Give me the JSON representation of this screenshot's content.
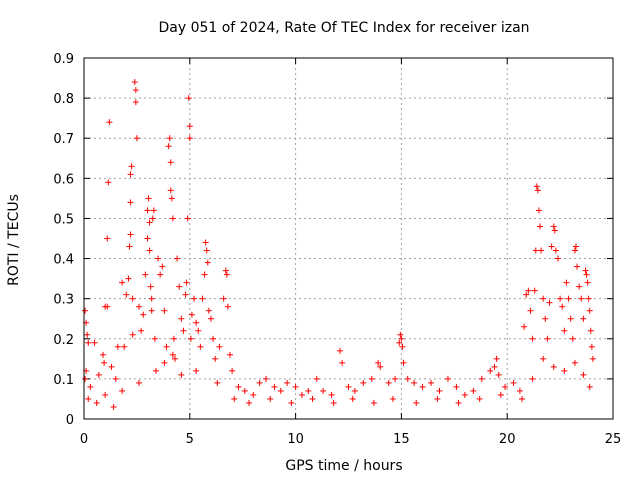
{
  "chart_data": {
    "type": "scatter",
    "title": "Day 051 of 2024, Rate Of TEC Index for receiver izan",
    "xlabel": "GPS time / hours",
    "ylabel": "ROTI / TECUs",
    "xlim": [
      0,
      25
    ],
    "ylim": [
      0,
      0.9
    ],
    "xticks": [
      0,
      5,
      10,
      15,
      20,
      25
    ],
    "yticks": [
      0,
      0.1,
      0.2,
      0.3,
      0.4,
      0.5,
      0.6,
      0.7,
      0.8,
      0.9
    ],
    "ytick_labels": [
      "0",
      "0.1",
      "0.2",
      "0.3",
      "0.4",
      "0.5",
      "0.6",
      "0.7",
      "0.8",
      "0.9"
    ],
    "grid": true,
    "marker": "+",
    "series": [
      {
        "name": "ROTI",
        "color": "#ff0000",
        "points": [
          [
            0.05,
            0.27
          ],
          [
            0.1,
            0.24
          ],
          [
            0.15,
            0.21
          ],
          [
            0.2,
            0.19
          ],
          [
            0.1,
            0.12
          ],
          [
            0.05,
            0.1
          ],
          [
            0.3,
            0.08
          ],
          [
            0.5,
            0.19
          ],
          [
            0.7,
            0.11
          ],
          [
            0.9,
            0.16
          ],
          [
            0.95,
            0.14
          ],
          [
            1.0,
            0.28
          ],
          [
            1.1,
            0.28
          ],
          [
            1.2,
            0.74
          ],
          [
            1.15,
            0.59
          ],
          [
            1.1,
            0.45
          ],
          [
            1.3,
            0.13
          ],
          [
            1.5,
            0.1
          ],
          [
            1.6,
            0.18
          ],
          [
            1.8,
            0.34
          ],
          [
            1.9,
            0.18
          ],
          [
            2.0,
            0.31
          ],
          [
            2.1,
            0.35
          ],
          [
            2.2,
            0.61
          ],
          [
            2.25,
            0.63
          ],
          [
            2.2,
            0.54
          ],
          [
            2.15,
            0.43
          ],
          [
            2.2,
            0.46
          ],
          [
            2.3,
            0.3
          ],
          [
            2.3,
            0.21
          ],
          [
            2.4,
            0.84
          ],
          [
            2.45,
            0.82
          ],
          [
            2.45,
            0.79
          ],
          [
            2.5,
            0.7
          ],
          [
            2.6,
            0.28
          ],
          [
            2.7,
            0.22
          ],
          [
            2.8,
            0.26
          ],
          [
            2.9,
            0.36
          ],
          [
            3.0,
            0.45
          ],
          [
            3.0,
            0.52
          ],
          [
            3.05,
            0.55
          ],
          [
            3.1,
            0.49
          ],
          [
            3.1,
            0.42
          ],
          [
            3.15,
            0.33
          ],
          [
            3.2,
            0.27
          ],
          [
            3.2,
            0.3
          ],
          [
            3.25,
            0.5
          ],
          [
            3.3,
            0.52
          ],
          [
            3.35,
            0.2
          ],
          [
            3.5,
            0.4
          ],
          [
            3.6,
            0.36
          ],
          [
            3.7,
            0.38
          ],
          [
            3.8,
            0.27
          ],
          [
            3.9,
            0.18
          ],
          [
            4.0,
            0.68
          ],
          [
            4.05,
            0.7
          ],
          [
            4.1,
            0.64
          ],
          [
            4.1,
            0.57
          ],
          [
            4.15,
            0.55
          ],
          [
            4.2,
            0.5
          ],
          [
            4.25,
            0.2
          ],
          [
            4.3,
            0.15
          ],
          [
            4.4,
            0.4
          ],
          [
            4.5,
            0.33
          ],
          [
            4.6,
            0.25
          ],
          [
            4.7,
            0.22
          ],
          [
            4.8,
            0.31
          ],
          [
            4.85,
            0.34
          ],
          [
            4.9,
            0.5
          ],
          [
            4.95,
            0.8
          ],
          [
            5.0,
            0.73
          ],
          [
            5.0,
            0.7
          ],
          [
            5.05,
            0.2
          ],
          [
            5.1,
            0.26
          ],
          [
            5.2,
            0.3
          ],
          [
            5.3,
            0.24
          ],
          [
            5.4,
            0.22
          ],
          [
            5.5,
            0.18
          ],
          [
            5.6,
            0.3
          ],
          [
            5.7,
            0.36
          ],
          [
            5.75,
            0.44
          ],
          [
            5.8,
            0.42
          ],
          [
            5.85,
            0.39
          ],
          [
            5.9,
            0.27
          ],
          [
            6.0,
            0.25
          ],
          [
            6.1,
            0.2
          ],
          [
            6.2,
            0.15
          ],
          [
            6.4,
            0.18
          ],
          [
            6.6,
            0.3
          ],
          [
            6.7,
            0.37
          ],
          [
            6.75,
            0.36
          ],
          [
            6.8,
            0.28
          ],
          [
            6.9,
            0.16
          ],
          [
            7.0,
            0.12
          ],
          [
            7.3,
            0.08
          ],
          [
            7.6,
            0.07
          ],
          [
            8.0,
            0.06
          ],
          [
            8.3,
            0.09
          ],
          [
            8.6,
            0.1
          ],
          [
            9.0,
            0.08
          ],
          [
            9.3,
            0.07
          ],
          [
            9.6,
            0.09
          ],
          [
            10.0,
            0.08
          ],
          [
            10.3,
            0.06
          ],
          [
            10.6,
            0.07
          ],
          [
            11.0,
            0.1
          ],
          [
            11.3,
            0.07
          ],
          [
            11.7,
            0.06
          ],
          [
            12.1,
            0.17
          ],
          [
            12.2,
            0.14
          ],
          [
            12.5,
            0.08
          ],
          [
            12.8,
            0.07
          ],
          [
            13.2,
            0.09
          ],
          [
            13.6,
            0.1
          ],
          [
            13.9,
            0.14
          ],
          [
            14.0,
            0.13
          ],
          [
            14.4,
            0.09
          ],
          [
            14.7,
            0.1
          ],
          [
            14.9,
            0.19
          ],
          [
            14.95,
            0.21
          ],
          [
            15.0,
            0.2
          ],
          [
            15.05,
            0.18
          ],
          [
            15.1,
            0.14
          ],
          [
            15.3,
            0.1
          ],
          [
            15.6,
            0.09
          ],
          [
            16.0,
            0.08
          ],
          [
            16.4,
            0.09
          ],
          [
            16.8,
            0.07
          ],
          [
            17.2,
            0.1
          ],
          [
            17.6,
            0.08
          ],
          [
            18.0,
            0.06
          ],
          [
            18.4,
            0.07
          ],
          [
            18.8,
            0.1
          ],
          [
            19.2,
            0.12
          ],
          [
            19.4,
            0.13
          ],
          [
            19.5,
            0.15
          ],
          [
            19.6,
            0.11
          ],
          [
            19.9,
            0.08
          ],
          [
            20.3,
            0.09
          ],
          [
            20.6,
            0.07
          ],
          [
            20.8,
            0.23
          ],
          [
            20.9,
            0.31
          ],
          [
            21.0,
            0.32
          ],
          [
            21.1,
            0.27
          ],
          [
            21.2,
            0.2
          ],
          [
            21.3,
            0.32
          ],
          [
            21.35,
            0.42
          ],
          [
            21.4,
            0.58
          ],
          [
            21.45,
            0.57
          ],
          [
            21.5,
            0.52
          ],
          [
            21.55,
            0.48
          ],
          [
            21.6,
            0.42
          ],
          [
            21.7,
            0.3
          ],
          [
            21.8,
            0.25
          ],
          [
            21.9,
            0.2
          ],
          [
            22.0,
            0.29
          ],
          [
            22.1,
            0.43
          ],
          [
            22.2,
            0.48
          ],
          [
            22.25,
            0.47
          ],
          [
            22.3,
            0.42
          ],
          [
            22.4,
            0.4
          ],
          [
            22.5,
            0.3
          ],
          [
            22.6,
            0.28
          ],
          [
            22.7,
            0.22
          ],
          [
            22.8,
            0.34
          ],
          [
            22.9,
            0.3
          ],
          [
            23.0,
            0.25
          ],
          [
            23.1,
            0.2
          ],
          [
            23.2,
            0.42
          ],
          [
            23.25,
            0.43
          ],
          [
            23.3,
            0.38
          ],
          [
            23.4,
            0.33
          ],
          [
            23.5,
            0.3
          ],
          [
            23.6,
            0.25
          ],
          [
            23.7,
            0.37
          ],
          [
            23.75,
            0.36
          ],
          [
            23.8,
            0.34
          ],
          [
            23.85,
            0.3
          ],
          [
            23.9,
            0.27
          ],
          [
            23.95,
            0.22
          ],
          [
            24.0,
            0.18
          ],
          [
            24.05,
            0.15
          ],
          [
            0.2,
            0.05
          ],
          [
            0.6,
            0.04
          ],
          [
            1.0,
            0.06
          ],
          [
            1.4,
            0.03
          ],
          [
            1.8,
            0.07
          ],
          [
            2.6,
            0.09
          ],
          [
            3.4,
            0.12
          ],
          [
            3.8,
            0.14
          ],
          [
            4.2,
            0.16
          ],
          [
            4.6,
            0.11
          ],
          [
            5.3,
            0.12
          ],
          [
            6.3,
            0.09
          ],
          [
            7.1,
            0.05
          ],
          [
            7.8,
            0.04
          ],
          [
            8.8,
            0.05
          ],
          [
            9.8,
            0.04
          ],
          [
            10.8,
            0.05
          ],
          [
            11.8,
            0.04
          ],
          [
            12.7,
            0.05
          ],
          [
            13.7,
            0.04
          ],
          [
            14.6,
            0.05
          ],
          [
            15.7,
            0.04
          ],
          [
            16.7,
            0.05
          ],
          [
            17.7,
            0.04
          ],
          [
            18.7,
            0.05
          ],
          [
            19.7,
            0.06
          ],
          [
            20.7,
            0.05
          ],
          [
            21.2,
            0.1
          ],
          [
            21.7,
            0.15
          ],
          [
            22.2,
            0.13
          ],
          [
            22.7,
            0.12
          ],
          [
            23.2,
            0.14
          ],
          [
            23.6,
            0.11
          ],
          [
            23.9,
            0.08
          ]
        ]
      }
    ]
  }
}
